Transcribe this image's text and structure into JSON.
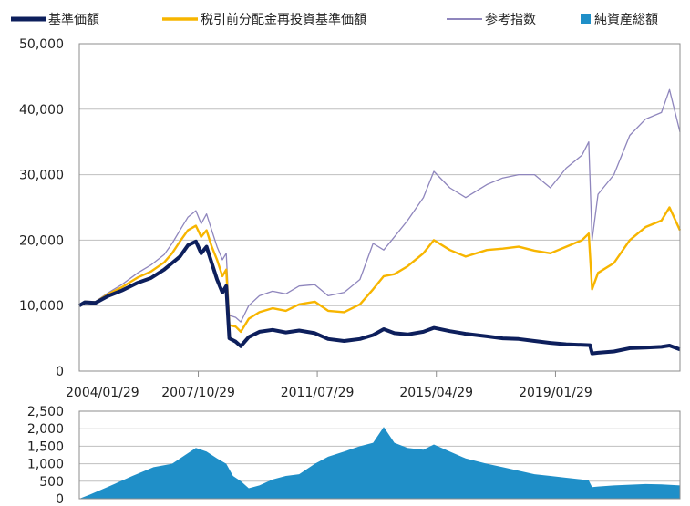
{
  "legend": {
    "items": [
      {
        "label": "基準価額",
        "color": "#0d1f5c",
        "style": "thick-line"
      },
      {
        "label": "税引前分配金再投資基準価額",
        "color": "#f7b500",
        "style": "line"
      },
      {
        "label": "参考指数",
        "color": "#8f86bd",
        "style": "thin-line"
      },
      {
        "label": "純資産総額",
        "color": "#1f8fc8",
        "style": "square"
      }
    ]
  },
  "chart_data": [
    {
      "type": "line",
      "x_ticks": [
        "2004/01/29",
        "2007/10/29",
        "2011/07/29",
        "2015/04/29",
        "2019/01/29"
      ],
      "x_range": [
        "2004/01/29",
        "2022/12/31"
      ],
      "ylim": [
        0,
        50000
      ],
      "y_ticks": [
        "0",
        "10,000",
        "20,000",
        "30,000",
        "40,000",
        "50,000"
      ],
      "grid": true,
      "legend_position": "top",
      "series": [
        {
          "name": "基準価額",
          "color": "#0d1f5c",
          "points": [
            [
              "2004/01/29",
              10000
            ],
            [
              "2004/04/01",
              10500
            ],
            [
              "2004/08/01",
              10400
            ],
            [
              "2005/01/01",
              11500
            ],
            [
              "2005/06/01",
              12300
            ],
            [
              "2005/12/01",
              13500
            ],
            [
              "2006/05/01",
              14200
            ],
            [
              "2006/10/01",
              15500
            ],
            [
              "2007/01/01",
              16500
            ],
            [
              "2007/04/01",
              17500
            ],
            [
              "2007/07/01",
              19200
            ],
            [
              "2007/10/01",
              19800
            ],
            [
              "2007/12/01",
              18000
            ],
            [
              "2008/02/01",
              19000
            ],
            [
              "2008/04/01",
              16500
            ],
            [
              "2008/06/01",
              14000
            ],
            [
              "2008/08/01",
              12000
            ],
            [
              "2008/09/15",
              13000
            ],
            [
              "2008/10/20",
              5000
            ],
            [
              "2009/01/01",
              4500
            ],
            [
              "2009/03/01",
              3800
            ],
            [
              "2009/06/01",
              5200
            ],
            [
              "2009/10/01",
              6000
            ],
            [
              "2010/03/01",
              6300
            ],
            [
              "2010/08/01",
              5900
            ],
            [
              "2011/01/01",
              6200
            ],
            [
              "2011/07/01",
              5800
            ],
            [
              "2011/12/01",
              4900
            ],
            [
              "2012/06/01",
              4600
            ],
            [
              "2012/12/01",
              4900
            ],
            [
              "2013/05/01",
              5500
            ],
            [
              "2013/09/01",
              6400
            ],
            [
              "2014/01/01",
              5800
            ],
            [
              "2014/06/01",
              5600
            ],
            [
              "2014/12/01",
              6000
            ],
            [
              "2015/04/01",
              6600
            ],
            [
              "2015/10/01",
              6100
            ],
            [
              "2016/04/01",
              5700
            ],
            [
              "2016/12/01",
              5300
            ],
            [
              "2017/06/01",
              5000
            ],
            [
              "2017/12/01",
              4900
            ],
            [
              "2018/06/01",
              4600
            ],
            [
              "2018/12/01",
              4300
            ],
            [
              "2019/06/01",
              4100
            ],
            [
              "2019/12/01",
              4000
            ],
            [
              "2020/03/01",
              3950
            ],
            [
              "2020/03/25",
              2700
            ],
            [
              "2020/06/01",
              2800
            ],
            [
              "2020/12/01",
              3000
            ],
            [
              "2021/06/01",
              3500
            ],
            [
              "2021/12/01",
              3600
            ],
            [
              "2022/06/01",
              3700
            ],
            [
              "2022/09/01",
              3900
            ],
            [
              "2022/12/31",
              3300
            ]
          ]
        },
        {
          "name": "税引前分配金再投資基準価額",
          "color": "#f7b500",
          "points": [
            [
              "2004/01/29",
              10000
            ],
            [
              "2004/04/01",
              10600
            ],
            [
              "2004/08/01",
              10500
            ],
            [
              "2005/01/01",
              11800
            ],
            [
              "2005/06/01",
              12800
            ],
            [
              "2005/12/01",
              14300
            ],
            [
              "2006/05/01",
              15200
            ],
            [
              "2006/10/01",
              16600
            ],
            [
              "2007/01/01",
              18000
            ],
            [
              "2007/04/01",
              19800
            ],
            [
              "2007/07/01",
              21500
            ],
            [
              "2007/10/01",
              22200
            ],
            [
              "2007/12/01",
              20500
            ],
            [
              "2008/02/01",
              21500
            ],
            [
              "2008/04/01",
              19000
            ],
            [
              "2008/06/01",
              17000
            ],
            [
              "2008/08/01",
              14500
            ],
            [
              "2008/09/15",
              15500
            ],
            [
              "2008/10/20",
              7000
            ],
            [
              "2009/01/01",
              6800
            ],
            [
              "2009/03/01",
              6000
            ],
            [
              "2009/06/01",
              8000
            ],
            [
              "2009/10/01",
              9000
            ],
            [
              "2010/03/01",
              9600
            ],
            [
              "2010/08/01",
              9200
            ],
            [
              "2011/01/01",
              10200
            ],
            [
              "2011/07/01",
              10600
            ],
            [
              "2011/12/01",
              9200
            ],
            [
              "2012/06/01",
              9000
            ],
            [
              "2012/12/01",
              10200
            ],
            [
              "2013/05/01",
              12500
            ],
            [
              "2013/09/01",
              14500
            ],
            [
              "2014/01/01",
              14800
            ],
            [
              "2014/06/01",
              16000
            ],
            [
              "2014/12/01",
              18000
            ],
            [
              "2015/04/01",
              20000
            ],
            [
              "2015/10/01",
              18500
            ],
            [
              "2016/04/01",
              17500
            ],
            [
              "2016/12/01",
              18500
            ],
            [
              "2017/06/01",
              18700
            ],
            [
              "2017/12/01",
              19000
            ],
            [
              "2018/06/01",
              18400
            ],
            [
              "2018/12/01",
              18000
            ],
            [
              "2019/06/01",
              19000
            ],
            [
              "2019/12/01",
              20000
            ],
            [
              "2020/02/15",
              21000
            ],
            [
              "2020/03/25",
              12500
            ],
            [
              "2020/06/01",
              15000
            ],
            [
              "2020/12/01",
              16500
            ],
            [
              "2021/06/01",
              20000
            ],
            [
              "2021/12/01",
              22000
            ],
            [
              "2022/06/01",
              23000
            ],
            [
              "2022/09/01",
              25000
            ],
            [
              "2022/12/31",
              21500
            ]
          ]
        },
        {
          "name": "参考指数",
          "color": "#8f86bd",
          "points": [
            [
              "2004/01/29",
              10000
            ],
            [
              "2004/04/01",
              10700
            ],
            [
              "2004/08/01",
              10600
            ],
            [
              "2005/01/01",
              12000
            ],
            [
              "2005/06/01",
              13200
            ],
            [
              "2005/12/01",
              15000
            ],
            [
              "2006/05/01",
              16200
            ],
            [
              "2006/10/01",
              17800
            ],
            [
              "2007/01/01",
              19500
            ],
            [
              "2007/04/01",
              21500
            ],
            [
              "2007/07/01",
              23500
            ],
            [
              "2007/10/01",
              24500
            ],
            [
              "2007/12/01",
              22500
            ],
            [
              "2008/02/01",
              24000
            ],
            [
              "2008/04/01",
              21500
            ],
            [
              "2008/06/01",
              19000
            ],
            [
              "2008/08/01",
              17000
            ],
            [
              "2008/09/15",
              18000
            ],
            [
              "2008/10/20",
              8500
            ],
            [
              "2009/01/01",
              8200
            ],
            [
              "2009/03/01",
              7500
            ],
            [
              "2009/06/01",
              10000
            ],
            [
              "2009/10/01",
              11500
            ],
            [
              "2010/03/01",
              12200
            ],
            [
              "2010/08/01",
              11800
            ],
            [
              "2011/01/01",
              13000
            ],
            [
              "2011/07/01",
              13200
            ],
            [
              "2011/12/01",
              11500
            ],
            [
              "2012/06/01",
              12000
            ],
            [
              "2012/12/01",
              14000
            ],
            [
              "2013/05/01",
              19500
            ],
            [
              "2013/09/01",
              18500
            ],
            [
              "2014/01/01",
              20500
            ],
            [
              "2014/06/01",
              23000
            ],
            [
              "2014/12/01",
              26500
            ],
            [
              "2015/04/01",
              30500
            ],
            [
              "2015/10/01",
              28000
            ],
            [
              "2016/04/01",
              26500
            ],
            [
              "2016/12/01",
              28500
            ],
            [
              "2017/06/01",
              29500
            ],
            [
              "2017/12/01",
              30000
            ],
            [
              "2018/06/01",
              30000
            ],
            [
              "2018/12/01",
              28000
            ],
            [
              "2019/06/01",
              31000
            ],
            [
              "2019/12/01",
              33000
            ],
            [
              "2020/02/15",
              35000
            ],
            [
              "2020/03/25",
              20000
            ],
            [
              "2020/06/01",
              27000
            ],
            [
              "2020/12/01",
              30000
            ],
            [
              "2021/06/01",
              36000
            ],
            [
              "2021/12/01",
              38500
            ],
            [
              "2022/06/01",
              39500
            ],
            [
              "2022/09/01",
              43000
            ],
            [
              "2022/12/31",
              36500
            ]
          ]
        }
      ]
    },
    {
      "type": "area",
      "x_range": [
        "2004/01/29",
        "2022/12/31"
      ],
      "ylim": [
        0,
        2500
      ],
      "y_ticks": [
        "0",
        "500",
        "1,000",
        "1,500",
        "2,000",
        "2,500"
      ],
      "grid": true,
      "series": [
        {
          "name": "純資産総額",
          "color": "#1f8fc8",
          "points": [
            [
              "2004/01/29",
              0
            ],
            [
              "2004/06/01",
              120
            ],
            [
              "2005/01/01",
              350
            ],
            [
              "2005/10/01",
              650
            ],
            [
              "2006/06/01",
              900
            ],
            [
              "2007/01/01",
              1000
            ],
            [
              "2007/06/01",
              1250
            ],
            [
              "2007/10/01",
              1450
            ],
            [
              "2008/02/01",
              1350
            ],
            [
              "2008/06/01",
              1150
            ],
            [
              "2008/09/15",
              1000
            ],
            [
              "2008/12/01",
              650
            ],
            [
              "2009/03/01",
              500
            ],
            [
              "2009/06/01",
              300
            ],
            [
              "2009/10/01",
              380
            ],
            [
              "2010/03/01",
              550
            ],
            [
              "2010/08/01",
              650
            ],
            [
              "2011/01/01",
              700
            ],
            [
              "2011/07/01",
              1000
            ],
            [
              "2011/12/01",
              1200
            ],
            [
              "2012/06/01",
              1350
            ],
            [
              "2012/12/01",
              1500
            ],
            [
              "2013/05/01",
              1600
            ],
            [
              "2013/09/01",
              2050
            ],
            [
              "2014/01/01",
              1600
            ],
            [
              "2014/06/01",
              1450
            ],
            [
              "2014/12/01",
              1400
            ],
            [
              "2015/04/01",
              1550
            ],
            [
              "2015/10/01",
              1350
            ],
            [
              "2016/04/01",
              1150
            ],
            [
              "2016/12/01",
              1000
            ],
            [
              "2017/06/01",
              900
            ],
            [
              "2017/12/01",
              800
            ],
            [
              "2018/06/01",
              700
            ],
            [
              "2018/12/01",
              650
            ],
            [
              "2019/06/01",
              600
            ],
            [
              "2019/12/01",
              550
            ],
            [
              "2020/02/15",
              520
            ],
            [
              "2020/03/25",
              330
            ],
            [
              "2020/06/01",
              350
            ],
            [
              "2020/12/01",
              380
            ],
            [
              "2021/06/01",
              400
            ],
            [
              "2021/12/01",
              420
            ],
            [
              "2022/06/01",
              410
            ],
            [
              "2022/12/31",
              380
            ]
          ]
        }
      ]
    }
  ]
}
